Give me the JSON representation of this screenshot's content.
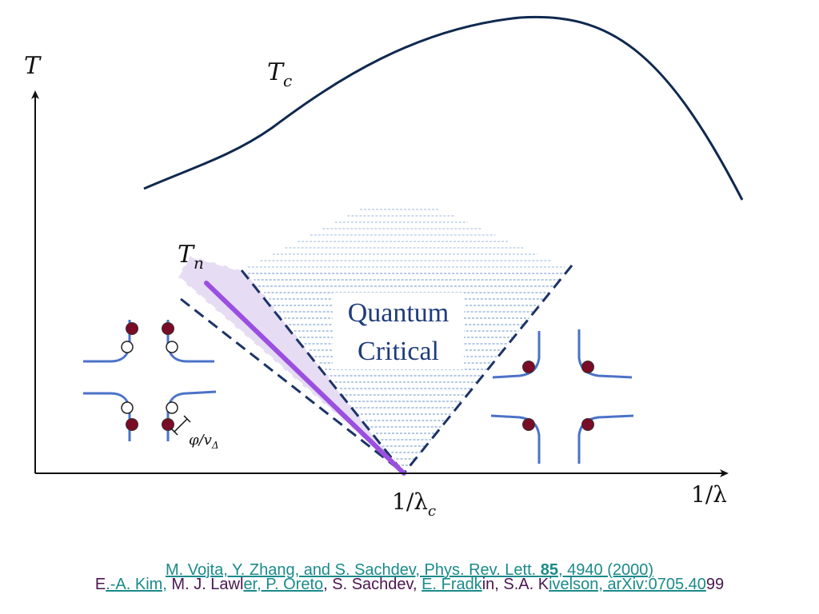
{
  "axes": {
    "y_label": "T",
    "x_label": "1/λ",
    "critical_point_label": "1/λ",
    "critical_point_subscript": "c"
  },
  "curves": {
    "tc_label": "T",
    "tc_subscript": "c",
    "tn_label": "T",
    "tn_subscript": "n"
  },
  "region": {
    "line1": "Quantum",
    "line2": "Critical"
  },
  "annotation": {
    "phi_label": "φ/v",
    "phi_subscript": "Δ"
  },
  "colors": {
    "tc_curve": "#10294f",
    "tn_line": "#9b4fe0",
    "tn_band": "#e6dcf3",
    "dashed_lines": "#1c3367",
    "hatch": "#4f7fc0",
    "fermi_arcs": "#4b72c8",
    "filled_dot": "#7a0c27",
    "axis": "#111111",
    "quantum_critical_text": "#1f3b7a"
  },
  "references": {
    "ref1": {
      "authors": "M. Vojta, Y. Zhang, and S. Sachdev, Phys. Rev. Lett. ",
      "volume": "85",
      "pages": ", 4940 (2000)"
    },
    "ref2": {
      "p1": "E",
      "p2": ".-A. Kim,",
      "p3": " M. J. Lawl",
      "p4": "er, P. Oreto",
      "p5": ", S. Sachdev, ",
      "p6": "E. Fradk",
      "p7": "in, S.A. K",
      "p8": "ivelson, arXiv:0705.40",
      "p9": "99"
    }
  }
}
